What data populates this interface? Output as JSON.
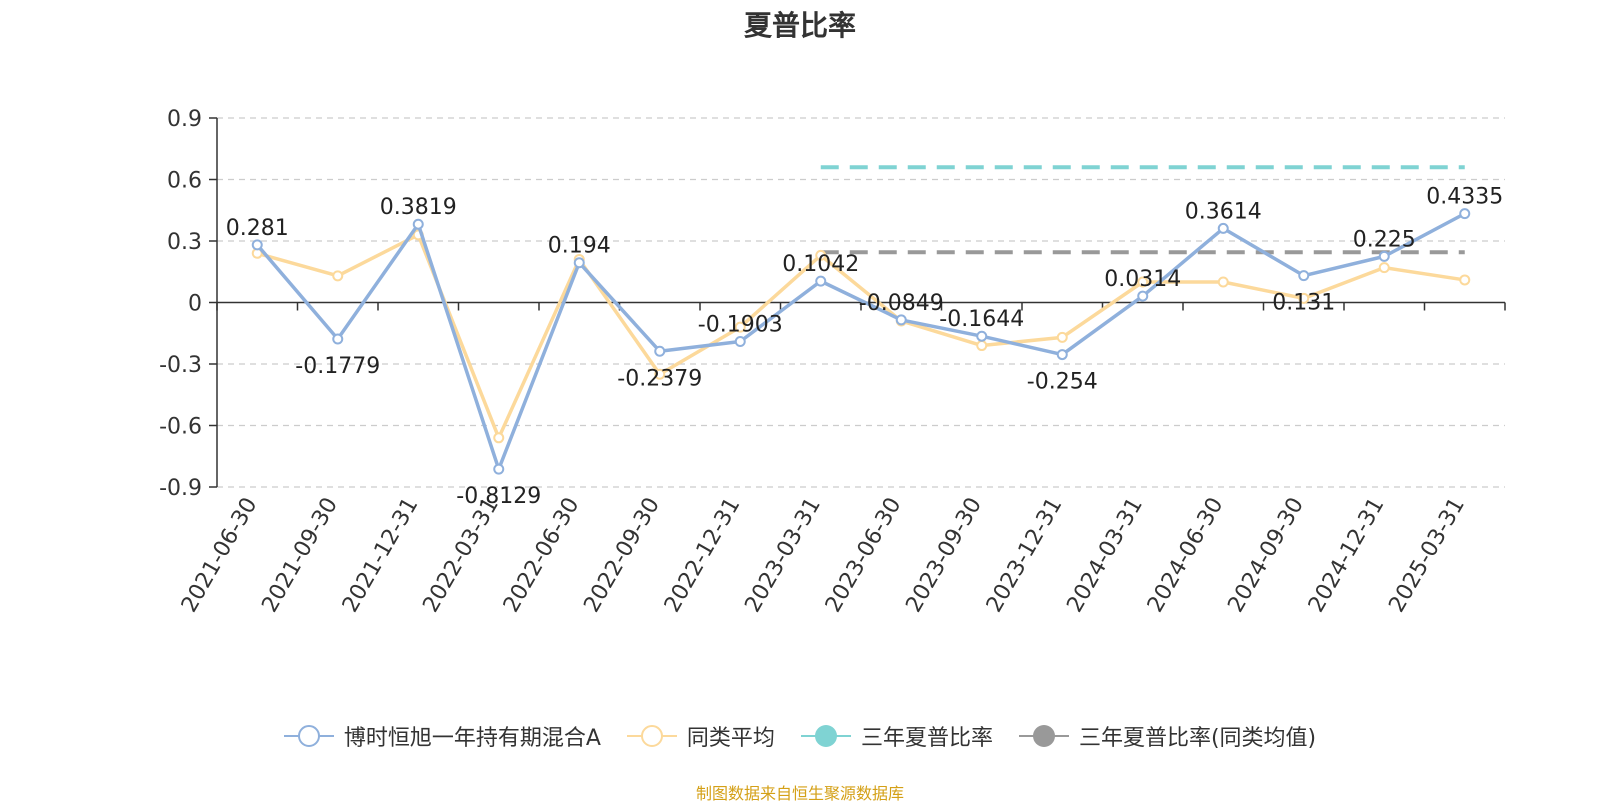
{
  "source_note": "制图数据来自恒生聚源数据库",
  "colors": {
    "fund": "#8fb0dc",
    "peer": "#fcd99b",
    "three_year_fund": "#7fd3d3",
    "three_year_peer": "#999999",
    "axis": "#333333",
    "grid": "#cccccc"
  },
  "chart_data": {
    "type": "line",
    "title": "夏普比率",
    "xlabel": "",
    "ylabel": "",
    "ylim": [
      -0.9,
      0.9
    ],
    "yticks": [
      -0.9,
      -0.6,
      -0.3,
      0,
      0.3,
      0.6,
      0.9
    ],
    "ytick_labels": [
      "-0.9",
      "-0.6",
      "-0.3",
      "0",
      "0.3",
      "0.6",
      "0.9"
    ],
    "grid": true,
    "legend_position": "bottom",
    "categories": [
      "2021-06-30",
      "2021-09-30",
      "2021-12-31",
      "2022-03-31",
      "2022-06-30",
      "2022-09-30",
      "2022-12-31",
      "2023-03-31",
      "2023-06-30",
      "2023-09-30",
      "2023-12-31",
      "2024-03-31",
      "2024-06-30",
      "2024-09-30",
      "2024-12-31",
      "2025-03-31"
    ],
    "series": [
      {
        "name": "博时恒旭一年持有期混合A",
        "values": [
          0.281,
          -0.1779,
          0.3819,
          -0.8129,
          0.194,
          -0.2379,
          -0.1903,
          0.1042,
          -0.0849,
          -0.1644,
          -0.254,
          0.0314,
          0.3614,
          0.131,
          0.225,
          0.4335
        ],
        "labels": [
          "0.281",
          "-0.1779",
          "0.3819",
          "-0.8129",
          "0.194",
          "-0.2379",
          "-0.1903",
          "0.1042",
          "-0.0849",
          "-0.1644",
          "-0.254",
          "0.0314",
          "0.3614",
          "0.131",
          "0.225",
          "0.4335"
        ]
      },
      {
        "name": "同类平均",
        "values": [
          0.24,
          0.13,
          0.33,
          -0.66,
          0.21,
          -0.35,
          -0.12,
          0.23,
          -0.09,
          -0.21,
          -0.17,
          0.1,
          0.1,
          0.02,
          0.17,
          0.11
        ]
      }
    ],
    "reference_lines": [
      {
        "name": "三年夏普比率",
        "value": 0.66,
        "from": "2023-03-31",
        "to": "2025-03-31"
      },
      {
        "name": "三年夏普比率(同类均值)",
        "value": 0.245,
        "from": "2023-03-31",
        "to": "2025-03-31"
      }
    ]
  }
}
